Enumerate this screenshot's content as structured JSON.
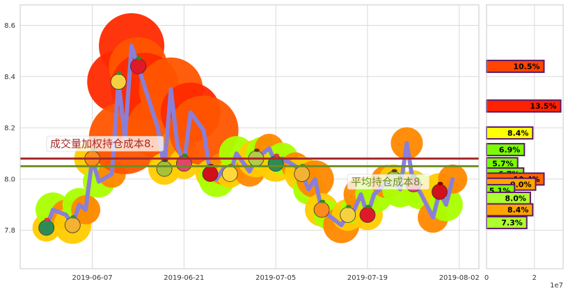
{
  "chart_data": {
    "type": "line",
    "x_ticks": [
      "2019-06-07",
      "2019-06-21",
      "2019-07-05",
      "2019-07-19",
      "2019-08-02"
    ],
    "y_ticks": [
      "7.8",
      "8.0",
      "8.2",
      "8.4",
      "8.6"
    ],
    "ylim": [
      7.65,
      8.68
    ],
    "grid": true,
    "series": [
      {
        "x": [
          "2019-05-31",
          "2019-06-01",
          "2019-06-03",
          "2019-06-04",
          "2019-06-05",
          "2019-06-06",
          "2019-06-07",
          "2019-06-08",
          "2019-06-10",
          "2019-06-11",
          "2019-06-12",
          "2019-06-13",
          "2019-06-14",
          "2019-06-15",
          "2019-06-17",
          "2019-06-18",
          "2019-06-19",
          "2019-06-20",
          "2019-06-21",
          "2019-06-22",
          "2019-06-24",
          "2019-06-25",
          "2019-06-26",
          "2019-06-27",
          "2019-06-28",
          "2019-06-29",
          "2019-07-01",
          "2019-07-02",
          "2019-07-03",
          "2019-07-04",
          "2019-07-05",
          "2019-07-06",
          "2019-07-08",
          "2019-07-09",
          "2019-07-10",
          "2019-07-11",
          "2019-07-12",
          "2019-07-13",
          "2019-07-15",
          "2019-07-16",
          "2019-07-17",
          "2019-07-18",
          "2019-07-19",
          "2019-07-20",
          "2019-07-22",
          "2019-07-23",
          "2019-07-24",
          "2019-07-25",
          "2019-07-26",
          "2019-07-27",
          "2019-07-29",
          "2019-07-30",
          "2019-07-31",
          "2019-08-01"
        ],
        "values": [
          7.81,
          7.88,
          7.86,
          7.82,
          7.9,
          7.88,
          8.08,
          7.99,
          8.02,
          8.38,
          8.16,
          8.52,
          8.44,
          8.36,
          8.2,
          8.04,
          8.35,
          8.13,
          8.06,
          8.26,
          8.19,
          8.02,
          8.0,
          8.04,
          8.02,
          8.1,
          8.03,
          8.08,
          8.1,
          8.12,
          8.06,
          8.08,
          8.05,
          8.02,
          7.96,
          8.0,
          7.88,
          7.86,
          7.82,
          7.86,
          7.88,
          7.94,
          7.86,
          7.94,
          7.99,
          8.0,
          7.96,
          8.14,
          7.98,
          7.95,
          7.85,
          7.95,
          7.9,
          8.0
        ]
      }
    ],
    "lines": [
      {
        "label": "成交量加权持仓成本8.",
        "value": 8.08,
        "color": "#a52a2a"
      },
      {
        "label": "平均持仓成本8.",
        "value": 8.05,
        "color": "#6b8e23"
      }
    ],
    "side_panel": {
      "x_ticks": [
        "0",
        "2"
      ],
      "x_unit": "1e7",
      "xlim": [
        0,
        3.2
      ],
      "bars": [
        {
          "price": 8.44,
          "value": 2.4,
          "label": "10.5%",
          "color": "#ff4500"
        },
        {
          "price": 8.285,
          "value": 3.1,
          "label": "13.5%",
          "color": "#ff2200"
        },
        {
          "price": 8.18,
          "value": 1.93,
          "label": "8.4%",
          "color": "#ffff00"
        },
        {
          "price": 8.115,
          "value": 1.58,
          "label": "6.9%",
          "color": "#7cfc00"
        },
        {
          "price": 8.06,
          "value": 1.3,
          "label": "5.7%",
          "color": "#7cfc00"
        },
        {
          "price": 8.02,
          "value": 1.55,
          "label": "6.7%",
          "color": "#7cfc00"
        },
        {
          "price": 8.0,
          "value": 2.4,
          "label": "10.4%",
          "color": "#ff6600"
        },
        {
          "price": 7.98,
          "value": 2.05,
          "label": "9.0%",
          "color": "#ffa500"
        },
        {
          "price": 7.955,
          "value": 1.17,
          "label": "5.1%",
          "color": "#7cfc00"
        },
        {
          "price": 7.925,
          "value": 1.83,
          "label": "8.0%",
          "color": "#adff2f"
        },
        {
          "price": 7.88,
          "value": 1.93,
          "label": "8.4%",
          "color": "#ffa500"
        },
        {
          "price": 7.83,
          "value": 1.68,
          "label": "7.3%",
          "color": "#adff2f"
        }
      ]
    }
  },
  "colors": {
    "line": "#8a7fd8",
    "grid": "#d9d9d9",
    "frame": "#c8c8c8"
  },
  "decor_icons": [
    "watermelon-icon",
    "apple-icon",
    "strawberry-icon",
    "pineapple-icon",
    "banana-icon",
    "kiwi-icon",
    "carrot-icon",
    "pear-icon",
    "radish-icon",
    "corn-icon"
  ]
}
